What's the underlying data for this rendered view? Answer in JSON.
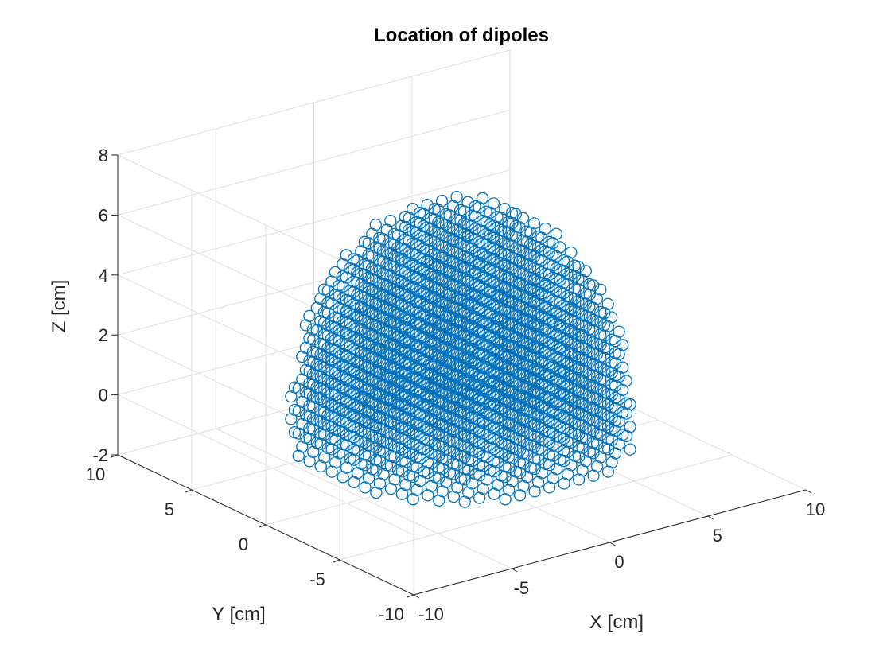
{
  "chart_data": {
    "type": "scatter",
    "title": "Location of dipoles",
    "xlabel": "X [cm]",
    "ylabel": "Y [cm]",
    "zlabel": "Z [cm]",
    "xlim": [
      -10,
      10
    ],
    "ylim": [
      -10,
      10
    ],
    "zlim": [
      -2,
      8
    ],
    "x_ticks": [
      "-10",
      "-5",
      "0",
      "5",
      "10"
    ],
    "y_ticks": [
      "-10",
      "-5",
      "0",
      "5",
      "10"
    ],
    "z_ticks": [
      "-2",
      "0",
      "2",
      "4",
      "6",
      "8"
    ],
    "grid": true,
    "series": [
      {
        "marker": "open-circle",
        "color": "#0072BD",
        "shape": "hemisphere",
        "center": [
          0,
          0,
          0
        ],
        "radius": 7,
        "z_range": [
          -1,
          7
        ],
        "spacing": 0.75
      }
    ]
  }
}
